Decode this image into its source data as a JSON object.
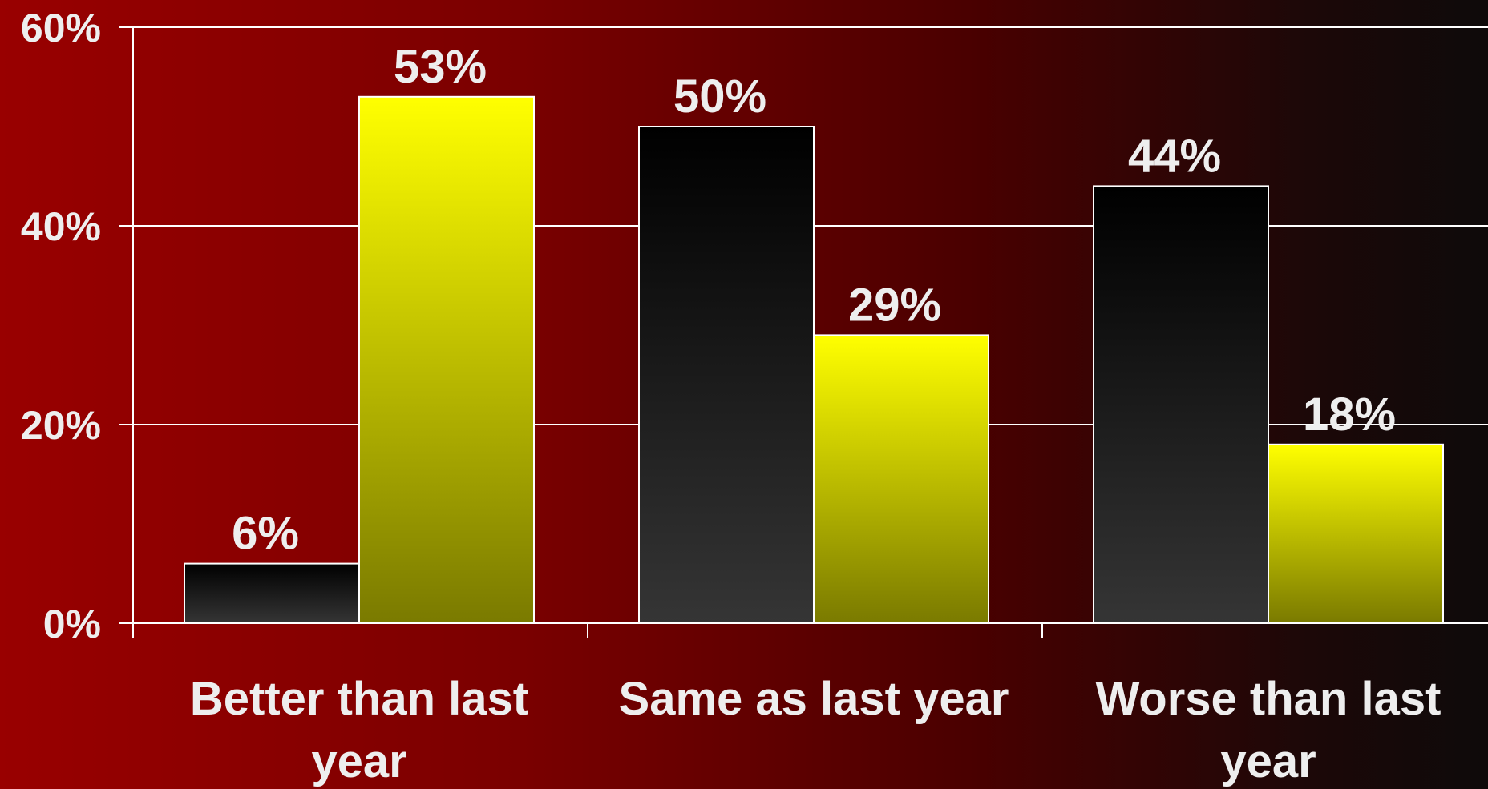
{
  "chart_data": {
    "type": "bar",
    "categories": [
      [
        "Better than last",
        "year"
      ],
      [
        "Same as last year"
      ],
      [
        "Worse than last",
        "year"
      ]
    ],
    "series": [
      {
        "values": [
          6,
          50,
          44
        ],
        "color_top": "#000000",
        "color_bottom": "#353535"
      },
      {
        "values": [
          53,
          29,
          18
        ],
        "color_top": "#ffff00",
        "color_bottom": "#7a7a00"
      }
    ],
    "value_labels": [
      [
        "6%",
        "50%",
        "44%"
      ],
      [
        "53%",
        "29%",
        "18%"
      ]
    ],
    "y_ticks": [
      0,
      20,
      40,
      60
    ],
    "y_tick_labels": [
      "0%",
      "20%",
      "40%",
      "60%"
    ],
    "ylim": [
      0,
      60
    ],
    "grid": true,
    "legend": "none"
  }
}
